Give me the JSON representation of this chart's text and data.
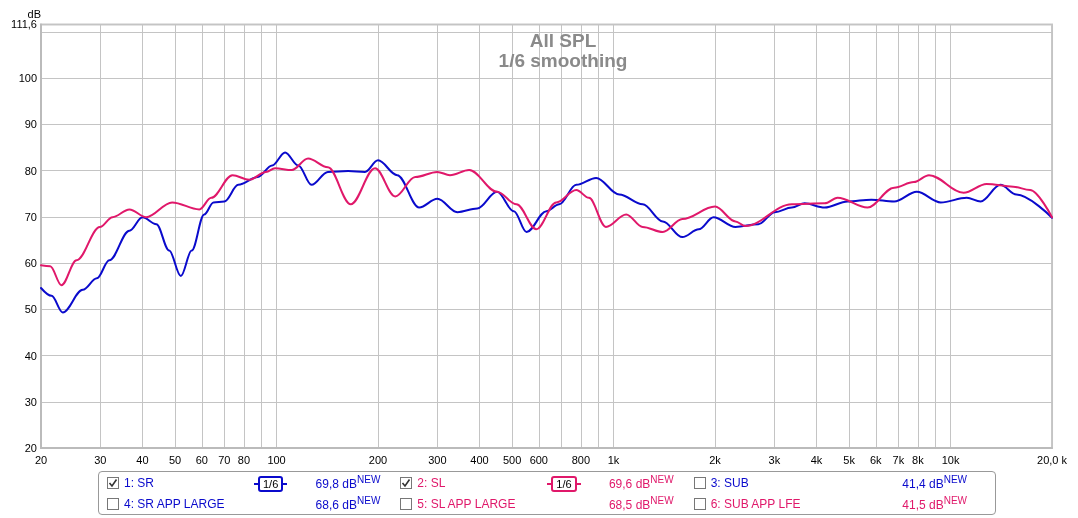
{
  "chart_data": {
    "type": "line",
    "title": "All SPL",
    "subtitle": "1/6 smoothing",
    "ylabel": "dB",
    "xlim": [
      20,
      20000
    ],
    "ylim": [
      20,
      111.6
    ],
    "log": "x",
    "grid": true,
    "legend": "bottom",
    "line_style": "solid",
    "marker": "none",
    "xticks": [
      20,
      30,
      40,
      50,
      60,
      70,
      80,
      {
        "value": 90,
        "label": null
      },
      100,
      200,
      300,
      400,
      500,
      600,
      {
        "value": 700,
        "label": null
      },
      800,
      {
        "value": 900,
        "label": null
      },
      {
        "value": 1000,
        "label": "1k"
      },
      {
        "value": 2000,
        "label": "2k"
      },
      {
        "value": 3000,
        "label": "3k"
      },
      {
        "value": 4000,
        "label": "4k"
      },
      {
        "value": 5000,
        "label": "5k"
      },
      {
        "value": 6000,
        "label": "6k"
      },
      {
        "value": 7000,
        "label": "7k"
      },
      {
        "value": 8000,
        "label": "8k"
      },
      {
        "value": 9000,
        "label": null
      },
      {
        "value": 10000,
        "label": "10k"
      },
      {
        "value": 20000,
        "label": "20,0 k"
      }
    ],
    "yticks": [
      20,
      30,
      40,
      50,
      60,
      70,
      80,
      90,
      100,
      {
        "value": 110,
        "label": null
      },
      {
        "value": 111.6,
        "label": "111,6"
      }
    ],
    "series": [
      {
        "name": "1: SR",
        "color": "#0a0acc",
        "x": [
          20,
          21.5,
          23.2,
          26.6,
          29.3,
          31.9,
          36.6,
          40,
          44,
          48,
          52,
          56,
          61,
          65,
          70,
          77,
          88,
          97,
          106,
          116,
          127,
          142,
          163,
          183,
          200,
          228,
          265,
          300,
          344,
          394,
          451,
          506,
          552,
          632,
          690,
          775,
          888,
          1040,
          1220,
          1400,
          1600,
          1790,
          1980,
          2300,
          2690,
          3010,
          3380,
          3690,
          4230,
          4950,
          5820,
          6800,
          7940,
          9350,
          11170,
          12280,
          14060,
          15680,
          20000
        ],
        "values": [
          54.6,
          52.9,
          49.3,
          54.2,
          56.7,
          60.6,
          67,
          69.9,
          68.4,
          62.7,
          57.2,
          62.7,
          70.5,
          73.1,
          73.3,
          76.9,
          78.6,
          81.1,
          83.9,
          81.1,
          76.9,
          79.7,
          79.9,
          79.7,
          82.2,
          79,
          72,
          73.9,
          71,
          71.8,
          75.4,
          71.2,
          66.7,
          71.2,
          72.7,
          76.9,
          78.4,
          74.8,
          72.7,
          69,
          65.6,
          67.3,
          69.9,
          67.8,
          68.4,
          71,
          72,
          72.9,
          72,
          73.3,
          73.7,
          73.3,
          75.4,
          73.1,
          74.1,
          73.3,
          76.9,
          74.8,
          69.8
        ]
      },
      {
        "name": "2: SL",
        "color": "#e0186a",
        "x": [
          20,
          21.3,
          23,
          25.5,
          29.9,
          32.6,
          36.6,
          41,
          49,
          59,
          64,
          74,
          83,
          93,
          99,
          111,
          124,
          142,
          166,
          196,
          225,
          258,
          300,
          327,
          373,
          451,
          515,
          590,
          676,
          775,
          845,
          949,
          1090,
          1220,
          1400,
          1600,
          2000,
          2300,
          2460,
          3380,
          4230,
          4620,
          5670,
          6800,
          7780,
          8630,
          10930,
          12790,
          15350,
          17220,
          20000
        ],
        "values": [
          59.5,
          59.3,
          55.2,
          60.6,
          67.8,
          69.9,
          71.6,
          69.9,
          73.1,
          71.6,
          74.1,
          79,
          78,
          79.7,
          80.5,
          80.1,
          82.6,
          80.7,
          72.7,
          80.5,
          74.4,
          78.6,
          79.7,
          79,
          80.1,
          75.4,
          72.7,
          67.3,
          73.1,
          75.8,
          74.1,
          67.8,
          70.5,
          67.8,
          66.7,
          69.5,
          72.2,
          69,
          68,
          72.7,
          72.9,
          74.1,
          72,
          76.3,
          77.5,
          79,
          75.2,
          77.1,
          76.5,
          75.8,
          69.9
        ]
      }
    ],
    "annotations": [
      "1/6",
      "69,8 dB$^{NEW}$",
      "1/6",
      "69,6 dB$^{NEW}$",
      "3: SUB",
      "41,4 dB$^{NEW}$",
      "4: SR APP LARGE",
      "68,6 dB$^{NEW}$",
      "5: SL APP LARGE",
      "68,5 dB$^{NEW}$",
      "6: SUB APP LFE",
      "41,5 dB$^{NEW}$"
    ]
  }
}
